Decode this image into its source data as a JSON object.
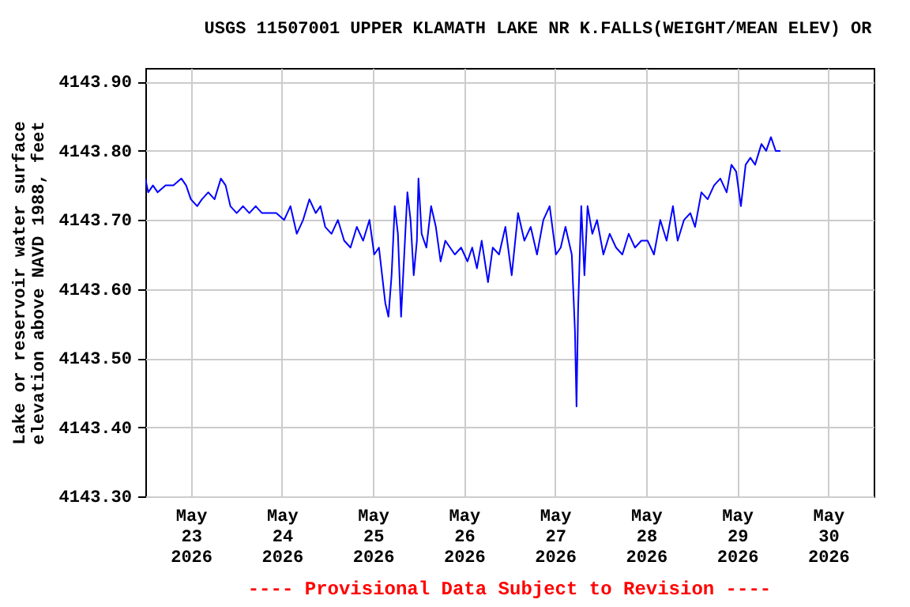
{
  "chart_data": {
    "type": "line",
    "title": "USGS 11507001 UPPER KLAMATH LAKE NR K.FALLS(WEIGHT/MEAN ELEV) OR",
    "ylabel": "Lake or reservoir water surface elevation above NAVD 1988, feet",
    "annotations": [
      "---- Provisional Data Subject to Revision ----"
    ],
    "x": [
      "2026-05-22T12:00",
      "2026-05-22T12:45",
      "2026-05-22T14:00",
      "2026-05-22T15:15",
      "2026-05-22T17:20",
      "2026-05-22T19:25",
      "2026-05-22T21:30",
      "2026-05-22T22:45",
      "2026-05-23T00:00",
      "2026-05-23T01:40",
      "2026-05-23T02:55",
      "2026-05-23T04:35",
      "2026-05-23T06:15",
      "2026-05-23T07:55",
      "2026-05-23T09:10",
      "2026-05-23T10:25",
      "2026-05-23T12:05",
      "2026-05-23T13:45",
      "2026-05-23T15:25",
      "2026-05-23T17:05",
      "2026-05-23T18:45",
      "2026-05-23T20:25",
      "2026-05-23T22:30",
      "2026-05-24T00:35",
      "2026-05-24T02:15",
      "2026-05-24T03:55",
      "2026-05-24T05:35",
      "2026-05-24T07:15",
      "2026-05-24T08:55",
      "2026-05-24T10:10",
      "2026-05-24T11:25",
      "2026-05-24T13:05",
      "2026-05-24T14:45",
      "2026-05-24T16:25",
      "2026-05-24T18:05",
      "2026-05-24T19:45",
      "2026-05-24T21:25",
      "2026-05-24T23:05",
      "2026-05-25T00:20",
      "2026-05-25T01:35",
      "2026-05-25T03:15",
      "2026-05-25T04:05",
      "2026-05-25T04:55",
      "2026-05-25T05:45",
      "2026-05-25T06:35",
      "2026-05-25T07:25",
      "2026-05-25T08:15",
      "2026-05-25T09:05",
      "2026-05-25T09:55",
      "2026-05-25T10:45",
      "2026-05-25T11:35",
      "2026-05-25T12:00",
      "2026-05-25T12:50",
      "2026-05-25T14:05",
      "2026-05-25T15:20",
      "2026-05-25T16:35",
      "2026-05-25T17:50",
      "2026-05-25T19:05",
      "2026-05-25T20:20",
      "2026-05-25T21:35",
      "2026-05-25T23:15",
      "2026-05-26T00:55",
      "2026-05-26T02:10",
      "2026-05-26T03:25",
      "2026-05-26T04:40",
      "2026-05-26T06:20",
      "2026-05-26T07:35",
      "2026-05-26T09:15",
      "2026-05-26T10:55",
      "2026-05-26T12:35",
      "2026-05-26T14:15",
      "2026-05-26T15:55",
      "2026-05-26T17:35",
      "2026-05-26T19:15",
      "2026-05-26T20:55",
      "2026-05-26T22:35",
      "2026-05-27T00:15",
      "2026-05-27T01:30",
      "2026-05-27T02:45",
      "2026-05-27T04:25",
      "2026-05-27T05:15",
      "2026-05-27T05:40",
      "2026-05-27T06:05",
      "2026-05-27T06:55",
      "2026-05-27T07:45",
      "2026-05-27T08:35",
      "2026-05-27T09:50",
      "2026-05-27T11:05",
      "2026-05-27T12:45",
      "2026-05-27T14:25",
      "2026-05-27T16:05",
      "2026-05-27T17:45",
      "2026-05-27T19:25",
      "2026-05-27T21:05",
      "2026-05-27T22:45",
      "2026-05-28T00:25",
      "2026-05-28T02:05",
      "2026-05-28T03:45",
      "2026-05-28T05:25",
      "2026-05-28T07:05",
      "2026-05-28T08:20",
      "2026-05-28T10:00",
      "2026-05-28T11:40",
      "2026-05-28T12:55",
      "2026-05-28T14:35",
      "2026-05-28T16:15",
      "2026-05-28T17:55",
      "2026-05-28T19:35",
      "2026-05-28T21:15",
      "2026-05-28T22:30",
      "2026-05-28T23:45",
      "2026-05-29T01:00",
      "2026-05-29T02:15",
      "2026-05-29T03:30",
      "2026-05-29T04:45",
      "2026-05-29T06:25",
      "2026-05-29T07:40",
      "2026-05-29T08:55",
      "2026-05-29T10:10",
      "2026-05-29T11:25"
    ],
    "series": [
      {
        "color": "#0000ff",
        "values": [
          4143.76,
          4143.74,
          4143.75,
          4143.74,
          4143.75,
          4143.75,
          4143.76,
          4143.75,
          4143.73,
          4143.72,
          4143.73,
          4143.74,
          4143.73,
          4143.76,
          4143.75,
          4143.72,
          4143.71,
          4143.72,
          4143.71,
          4143.72,
          4143.71,
          4143.71,
          4143.71,
          4143.7,
          4143.72,
          4143.68,
          4143.7,
          4143.73,
          4143.71,
          4143.72,
          4143.69,
          4143.68,
          4143.7,
          4143.67,
          4143.66,
          4143.69,
          4143.67,
          4143.7,
          4143.65,
          4143.66,
          4143.58,
          4143.56,
          4143.62,
          4143.72,
          4143.68,
          4143.56,
          4143.65,
          4143.74,
          4143.7,
          4143.62,
          4143.67,
          4143.76,
          4143.68,
          4143.66,
          4143.72,
          4143.69,
          4143.64,
          4143.67,
          4143.66,
          4143.65,
          4143.66,
          4143.64,
          4143.66,
          4143.63,
          4143.67,
          4143.61,
          4143.66,
          4143.65,
          4143.69,
          4143.62,
          4143.71,
          4143.67,
          4143.69,
          4143.65,
          4143.7,
          4143.72,
          4143.65,
          4143.66,
          4143.69,
          4143.65,
          4143.54,
          4143.43,
          4143.57,
          4143.72,
          4143.62,
          4143.72,
          4143.68,
          4143.7,
          4143.65,
          4143.68,
          4143.66,
          4143.65,
          4143.68,
          4143.66,
          4143.67,
          4143.67,
          4143.65,
          4143.7,
          4143.67,
          4143.72,
          4143.67,
          4143.7,
          4143.71,
          4143.69,
          4143.74,
          4143.73,
          4143.75,
          4143.76,
          4143.74,
          4143.78,
          4143.77,
          4143.72,
          4143.78,
          4143.79,
          4143.78,
          4143.81,
          4143.8,
          4143.82,
          4143.8,
          4143.8
        ]
      }
    ],
    "xlim": [
      "2026-05-22T12:00",
      "2026-05-30T12:00"
    ],
    "xticks": [
      {
        "value": "2026-05-23T00:00",
        "label": "May 23 2026"
      },
      {
        "value": "2026-05-24T00:00",
        "label": "May 24 2026"
      },
      {
        "value": "2026-05-25T00:00",
        "label": "May 25 2026"
      },
      {
        "value": "2026-05-26T00:00",
        "label": "May 26 2026"
      },
      {
        "value": "2026-05-27T00:00",
        "label": "May 27 2026"
      },
      {
        "value": "2026-05-28T00:00",
        "label": "May 28 2026"
      },
      {
        "value": "2026-05-29T00:00",
        "label": "May 29 2026"
      },
      {
        "value": "2026-05-30T00:00",
        "label": "May 30 2026"
      }
    ],
    "ylim": [
      4143.3,
      4143.92
    ],
    "yticks": [
      {
        "value": 4143.3,
        "label": "4143.30"
      },
      {
        "value": 4143.4,
        "label": "4143.40"
      },
      {
        "value": 4143.5,
        "label": "4143.50"
      },
      {
        "value": 4143.6,
        "label": "4143.60"
      },
      {
        "value": 4143.7,
        "label": "4143.70"
      },
      {
        "value": 4143.8,
        "label": "4143.80"
      },
      {
        "value": 4143.9,
        "label": "4143.90"
      }
    ],
    "grid": true,
    "line_style": "solid",
    "marker": "none"
  }
}
